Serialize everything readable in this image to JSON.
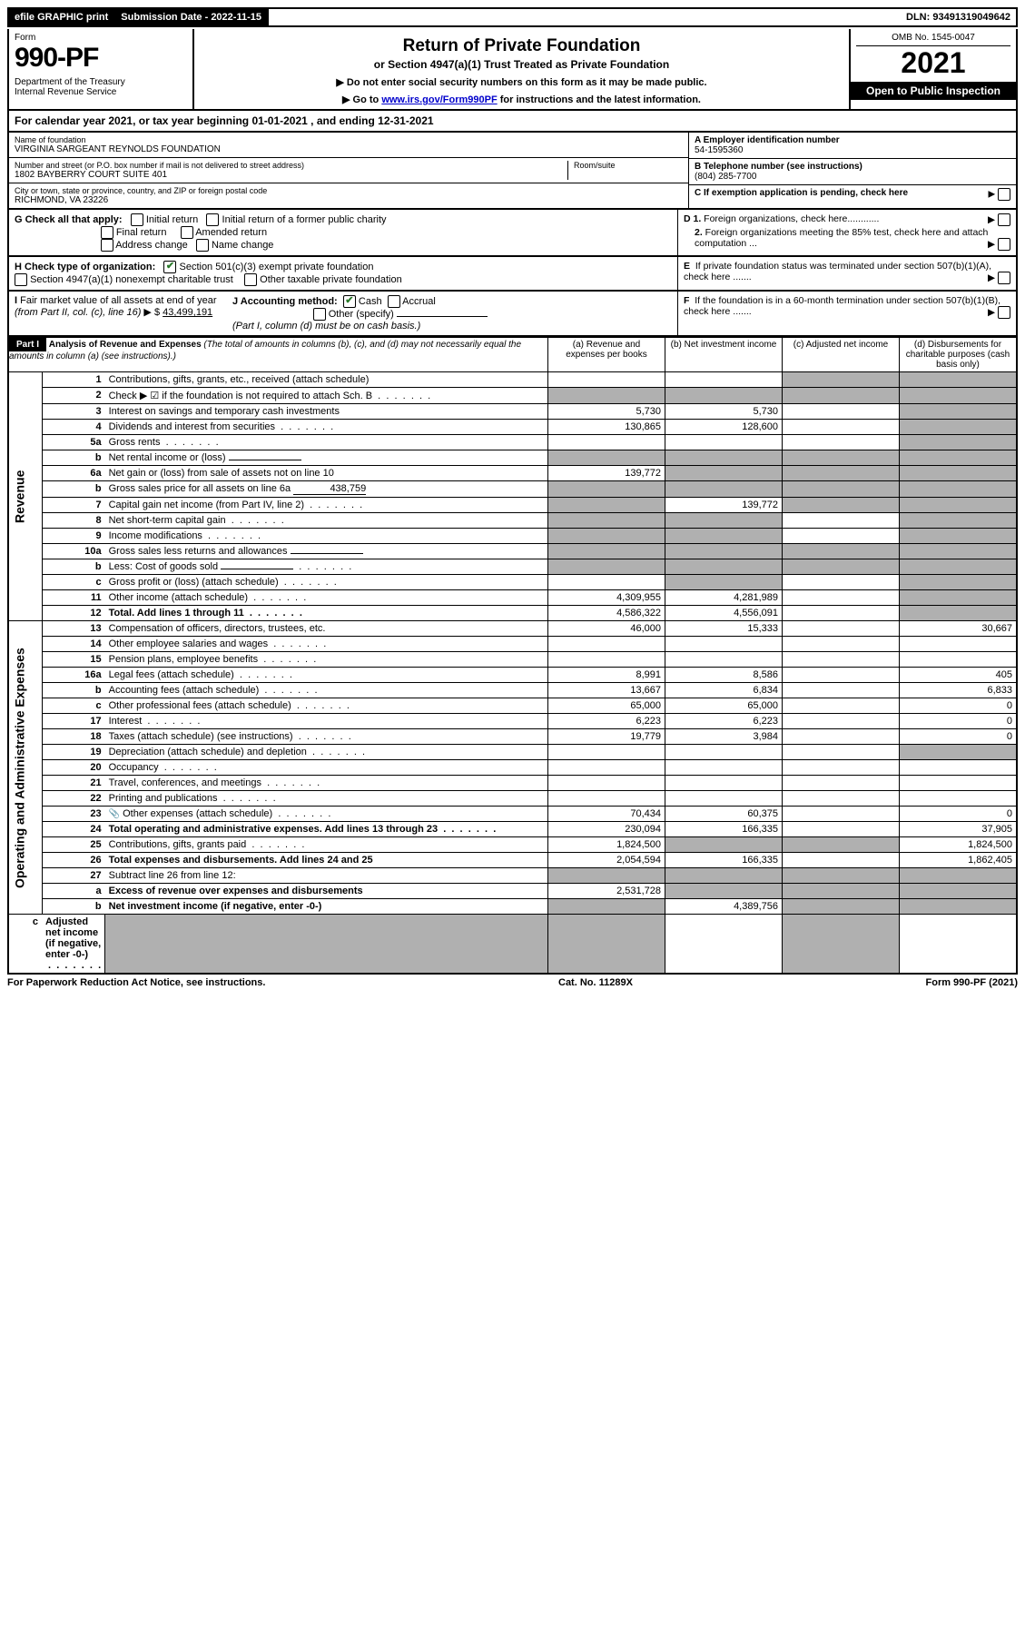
{
  "top": {
    "efile": "efile GRAPHIC print",
    "subdate_lbl": "Submission Date - 2022-11-15",
    "dln": "DLN: 93491319049642"
  },
  "header": {
    "form_lbl": "Form",
    "form_num": "990-PF",
    "dept": "Department of the Treasury\nInternal Revenue Service",
    "title": "Return of Private Foundation",
    "subtitle": "or Section 4947(a)(1) Trust Treated as Private Foundation",
    "instr1": "▶ Do not enter social security numbers on this form as it may be made public.",
    "instr2_pre": "▶ Go to ",
    "instr2_link": "www.irs.gov/Form990PF",
    "instr2_post": " for instructions and the latest information.",
    "omb": "OMB No. 1545-0047",
    "year": "2021",
    "inspect": "Open to Public Inspection"
  },
  "cal": "For calendar year 2021, or tax year beginning 01-01-2021          , and ending 12-31-2021",
  "ident": {
    "name_lbl": "Name of foundation",
    "name": "VIRGINIA SARGEANT REYNOLDS FOUNDATION",
    "addr_lbl": "Number and street (or P.O. box number if mail is not delivered to street address)",
    "addr": "1802 BAYBERRY COURT SUITE 401",
    "room_lbl": "Room/suite",
    "city_lbl": "City or town, state or province, country, and ZIP or foreign postal code",
    "city": "RICHMOND, VA  23226",
    "ein_lbl": "A Employer identification number",
    "ein": "54-1595360",
    "tel_lbl": "B Telephone number (see instructions)",
    "tel": "(804) 285-7700",
    "c": "C If exemption application is pending, check here",
    "d1": "D 1. Foreign organizations, check here............",
    "d2": "2. Foreign organizations meeting the 85% test, check here and attach computation ...",
    "e": "E  If private foundation status was terminated under section 507(b)(1)(A), check here .......",
    "f": "F  If the foundation is in a 60-month termination under section 507(b)(1)(B), check here .......",
    "g_lbl": "G Check all that apply:",
    "g_opts": [
      "Initial return",
      "Initial return of a former public charity",
      "Final return",
      "Amended return",
      "Address change",
      "Name change"
    ],
    "h_lbl": "H Check type of organization:",
    "h_opts": [
      "Section 501(c)(3) exempt private foundation",
      "Section 4947(a)(1) nonexempt charitable trust",
      "Other taxable private foundation"
    ],
    "i_lbl": "I Fair market value of all assets at end of year (from Part II, col. (c), line 16) ▶ $",
    "i_val": "43,499,191",
    "j_lbl": "J Accounting method:",
    "j_opts": [
      "Cash",
      "Accrual",
      "Other (specify)"
    ],
    "j_note": "(Part I, column (d) must be on cash basis.)"
  },
  "part1": {
    "label": "Part I",
    "title": "Analysis of Revenue and Expenses",
    "note": "(The total of amounts in columns (b), (c), and (d) may not necessarily equal the amounts in column (a) (see instructions).)",
    "cols": [
      "(a) Revenue and expenses per books",
      "(b) Net investment income",
      "(c) Adjusted net income",
      "(d) Disbursements for charitable purposes (cash basis only)"
    ]
  },
  "sections": {
    "revenue": "Revenue",
    "opex": "Operating and Administrative Expenses"
  },
  "rows": [
    {
      "n": "1",
      "d": "Contributions, gifts, grants, etc., received (attach schedule)",
      "a": "",
      "b": "",
      "c": "s",
      "dd": "s"
    },
    {
      "n": "2",
      "d": "Check ▶ ☑ if the foundation is not required to attach Sch. B",
      "a": "s",
      "b": "s",
      "c": "s",
      "dd": "s",
      "dot": true
    },
    {
      "n": "3",
      "d": "Interest on savings and temporary cash investments",
      "a": "5,730",
      "b": "5,730",
      "c": "",
      "dd": "s"
    },
    {
      "n": "4",
      "d": "Dividends and interest from securities",
      "a": "130,865",
      "b": "128,600",
      "c": "",
      "dd": "s",
      "dot": true
    },
    {
      "n": "5a",
      "d": "Gross rents",
      "a": "",
      "b": "",
      "c": "",
      "dd": "s",
      "dot": true
    },
    {
      "n": "b",
      "d": "Net rental income or (loss)",
      "a": "s",
      "b": "s",
      "c": "s",
      "dd": "s",
      "inline": ""
    },
    {
      "n": "6a",
      "d": "Net gain or (loss) from sale of assets not on line 10",
      "a": "139,772",
      "b": "s",
      "c": "s",
      "dd": "s"
    },
    {
      "n": "b",
      "d": "Gross sales price for all assets on line 6a",
      "a": "s",
      "b": "s",
      "c": "s",
      "dd": "s",
      "inline": "438,759"
    },
    {
      "n": "7",
      "d": "Capital gain net income (from Part IV, line 2)",
      "a": "s",
      "b": "139,772",
      "c": "s",
      "dd": "s",
      "dot": true
    },
    {
      "n": "8",
      "d": "Net short-term capital gain",
      "a": "s",
      "b": "s",
      "c": "",
      "dd": "s",
      "dot": true
    },
    {
      "n": "9",
      "d": "Income modifications",
      "a": "s",
      "b": "s",
      "c": "",
      "dd": "s",
      "dot": true
    },
    {
      "n": "10a",
      "d": "Gross sales less returns and allowances",
      "a": "s",
      "b": "s",
      "c": "s",
      "dd": "s",
      "inline": ""
    },
    {
      "n": "b",
      "d": "Less: Cost of goods sold",
      "a": "s",
      "b": "s",
      "c": "s",
      "dd": "s",
      "inline": "",
      "dot": true
    },
    {
      "n": "c",
      "d": "Gross profit or (loss) (attach schedule)",
      "a": "",
      "b": "s",
      "c": "",
      "dd": "s",
      "dot": true
    },
    {
      "n": "11",
      "d": "Other income (attach schedule)",
      "a": "4,309,955",
      "b": "4,281,989",
      "c": "",
      "dd": "s",
      "dot": true
    },
    {
      "n": "12",
      "d": "Total. Add lines 1 through 11",
      "a": "4,586,322",
      "b": "4,556,091",
      "c": "",
      "dd": "s",
      "dot": true,
      "bold": true
    },
    {
      "n": "13",
      "d": "Compensation of officers, directors, trustees, etc.",
      "a": "46,000",
      "b": "15,333",
      "c": "",
      "dd": "30,667"
    },
    {
      "n": "14",
      "d": "Other employee salaries and wages",
      "a": "",
      "b": "",
      "c": "",
      "dd": "",
      "dot": true
    },
    {
      "n": "15",
      "d": "Pension plans, employee benefits",
      "a": "",
      "b": "",
      "c": "",
      "dd": "",
      "dot": true
    },
    {
      "n": "16a",
      "d": "Legal fees (attach schedule)",
      "a": "8,991",
      "b": "8,586",
      "c": "",
      "dd": "405",
      "dot": true
    },
    {
      "n": "b",
      "d": "Accounting fees (attach schedule)",
      "a": "13,667",
      "b": "6,834",
      "c": "",
      "dd": "6,833",
      "dot": true
    },
    {
      "n": "c",
      "d": "Other professional fees (attach schedule)",
      "a": "65,000",
      "b": "65,000",
      "c": "",
      "dd": "0",
      "dot": true
    },
    {
      "n": "17",
      "d": "Interest",
      "a": "6,223",
      "b": "6,223",
      "c": "",
      "dd": "0",
      "dot": true
    },
    {
      "n": "18",
      "d": "Taxes (attach schedule) (see instructions)",
      "a": "19,779",
      "b": "3,984",
      "c": "",
      "dd": "0",
      "dot": true
    },
    {
      "n": "19",
      "d": "Depreciation (attach schedule) and depletion",
      "a": "",
      "b": "",
      "c": "",
      "dd": "s",
      "dot": true
    },
    {
      "n": "20",
      "d": "Occupancy",
      "a": "",
      "b": "",
      "c": "",
      "dd": "",
      "dot": true
    },
    {
      "n": "21",
      "d": "Travel, conferences, and meetings",
      "a": "",
      "b": "",
      "c": "",
      "dd": "",
      "dot": true
    },
    {
      "n": "22",
      "d": "Printing and publications",
      "a": "",
      "b": "",
      "c": "",
      "dd": "",
      "dot": true
    },
    {
      "n": "23",
      "d": "Other expenses (attach schedule)",
      "a": "70,434",
      "b": "60,375",
      "c": "",
      "dd": "0",
      "dot": true,
      "icon": "📎"
    },
    {
      "n": "24",
      "d": "Total operating and administrative expenses. Add lines 13 through 23",
      "a": "230,094",
      "b": "166,335",
      "c": "",
      "dd": "37,905",
      "dot": true,
      "bold": true
    },
    {
      "n": "25",
      "d": "Contributions, gifts, grants paid",
      "a": "1,824,500",
      "b": "s",
      "c": "s",
      "dd": "1,824,500",
      "dot": true
    },
    {
      "n": "26",
      "d": "Total expenses and disbursements. Add lines 24 and 25",
      "a": "2,054,594",
      "b": "166,335",
      "c": "",
      "dd": "1,862,405",
      "bold": true
    },
    {
      "n": "27",
      "d": "Subtract line 26 from line 12:",
      "a": "s",
      "b": "s",
      "c": "s",
      "dd": "s"
    },
    {
      "n": "a",
      "d": "Excess of revenue over expenses and disbursements",
      "a": "2,531,728",
      "b": "s",
      "c": "s",
      "dd": "s",
      "bold": true
    },
    {
      "n": "b",
      "d": "Net investment income (if negative, enter -0-)",
      "a": "s",
      "b": "4,389,756",
      "c": "s",
      "dd": "s",
      "bold": true
    },
    {
      "n": "c",
      "d": "Adjusted net income (if negative, enter -0-)",
      "a": "s",
      "b": "s",
      "c": "",
      "dd": "s",
      "bold": true,
      "dot": true
    }
  ],
  "footer": {
    "pra": "For Paperwork Reduction Act Notice, see instructions.",
    "cat": "Cat. No. 11289X",
    "form": "Form 990-PF (2021)"
  }
}
